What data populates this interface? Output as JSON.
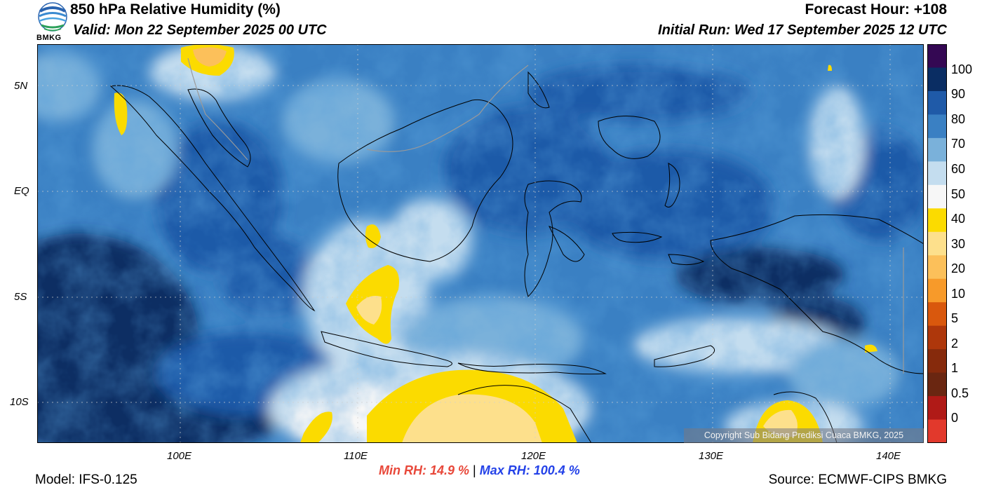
{
  "header": {
    "title": "850 hPa Relative Humidity (%)",
    "valid": "Valid: Mon 22 September 2025 00 UTC",
    "forecast_hour": "Forecast Hour: +108",
    "initial_run": "Initial Run: Wed 17 September 2025 12 UTC"
  },
  "logo": {
    "text": "BMKG",
    "icon": "bmkg-logo"
  },
  "axes": {
    "lat_labels": [
      "5N",
      "EQ",
      "5S",
      "10S"
    ],
    "lon_labels": [
      "100E",
      "110E",
      "120E",
      "130E",
      "140E"
    ]
  },
  "colorbar": {
    "labels": [
      "100",
      "90",
      "80",
      "70",
      "60",
      "50",
      "40",
      "30",
      "20",
      "10",
      "5",
      "2",
      "1",
      "0.5",
      "0"
    ],
    "colors": [
      "#340853",
      "#0a2d63",
      "#1f5aa8",
      "#3a80c3",
      "#7ab1da",
      "#c4ddef",
      "#f7f7f7",
      "#fbdb00",
      "#fde08c",
      "#fcc05a",
      "#f79a2a",
      "#d9580d",
      "#ae370b",
      "#862a0c",
      "#6a2611",
      "#b01a17",
      "#e2392c"
    ]
  },
  "stats": {
    "min": "Min RH:  14.9 %",
    "separator": "|",
    "max": "Max RH: 100.4 %"
  },
  "footer": {
    "model": "Model: IFS-0.125",
    "source": "Source: ECMWF-CIPS BMKG",
    "copyright": "Copyright Sub Bidang Prediksi Cuaca BMKG, 2025"
  }
}
